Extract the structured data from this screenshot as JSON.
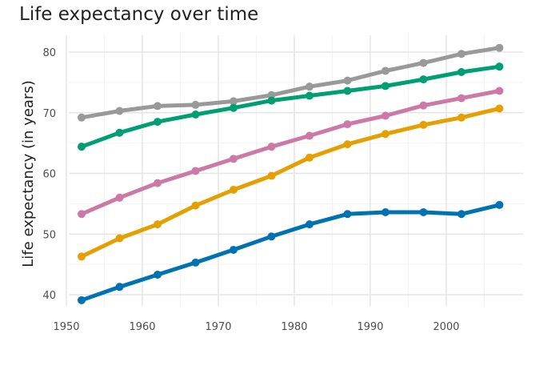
{
  "chart_data": {
    "type": "line",
    "title": "Life expectancy over time",
    "xlabel": "",
    "ylabel": "Life expectancy (in years)",
    "x": [
      1952,
      1957,
      1962,
      1967,
      1972,
      1977,
      1982,
      1987,
      1992,
      1997,
      2002,
      2007
    ],
    "xlim": [
      1950,
      2010
    ],
    "ylim": [
      37.5,
      82
    ],
    "xticks": [
      1950,
      1960,
      1970,
      1980,
      1990,
      2000
    ],
    "yticks": [
      40,
      50,
      60,
      70,
      80
    ],
    "grid": true,
    "legend": "none",
    "series": [
      {
        "color": "#999999",
        "values": [
          69.2,
          70.3,
          71.1,
          71.3,
          71.9,
          72.9,
          74.3,
          75.3,
          76.9,
          78.2,
          79.7,
          80.7
        ]
      },
      {
        "color": "#009E73",
        "values": [
          64.4,
          66.7,
          68.5,
          69.7,
          70.8,
          72.0,
          72.8,
          73.6,
          74.4,
          75.5,
          76.7,
          77.6
        ]
      },
      {
        "color": "#CC79A7",
        "values": [
          53.3,
          56.0,
          58.4,
          60.4,
          62.4,
          64.4,
          66.2,
          68.1,
          69.5,
          71.2,
          72.4,
          73.6
        ]
      },
      {
        "color": "#E69F00",
        "values": [
          46.3,
          49.3,
          51.6,
          54.7,
          57.3,
          59.6,
          62.6,
          64.8,
          66.5,
          68.0,
          69.2,
          70.7
        ]
      },
      {
        "color": "#0072B2",
        "values": [
          39.1,
          41.3,
          43.3,
          45.3,
          47.4,
          49.6,
          51.6,
          53.3,
          53.6,
          53.6,
          53.3,
          54.8
        ]
      }
    ]
  }
}
